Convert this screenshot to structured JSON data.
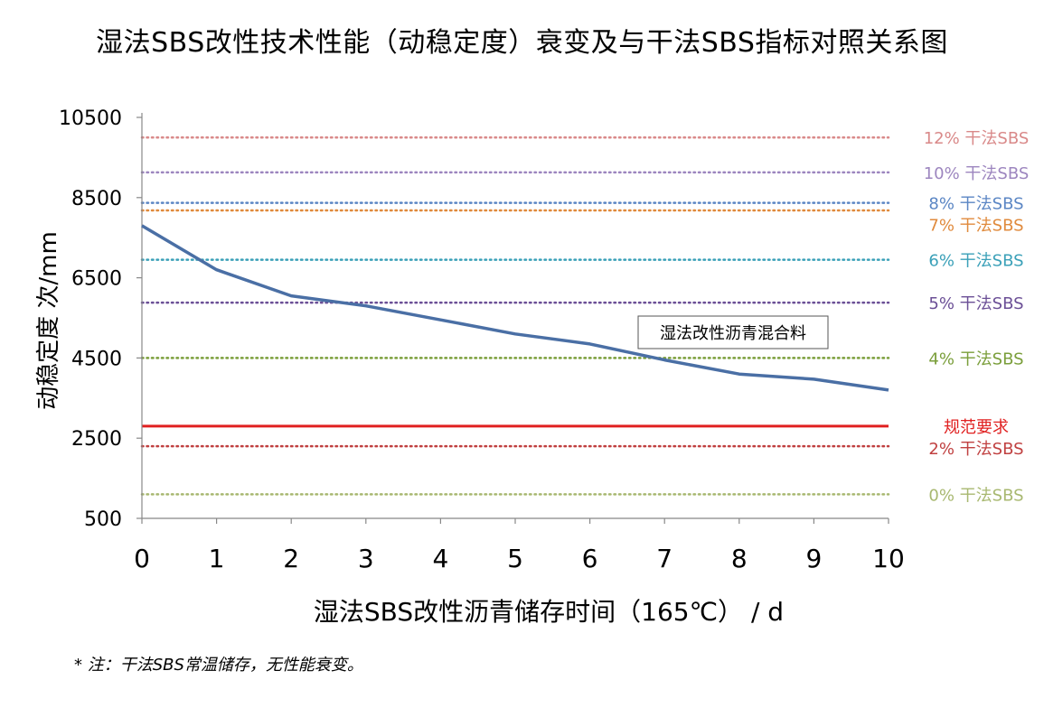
{
  "chart_data": {
    "type": "line",
    "title": "湿法SBS改性技术性能（动稳定度）衰变及与干法SBS指标对照关系图",
    "xlabel": "湿法SBS改性沥青储存时间（165℃）  / d",
    "ylabel": "动稳定度 次/mm",
    "xlim": [
      0,
      10
    ],
    "ylim": [
      500,
      10500
    ],
    "x_ticks": [
      0,
      1,
      2,
      3,
      4,
      5,
      6,
      7,
      8,
      9,
      10
    ],
    "y_ticks": [
      500,
      2500,
      4500,
      6500,
      8500,
      10500
    ],
    "grid": false,
    "series": [
      {
        "name": "湿法改性沥青混合料",
        "color": "#4a6fa5",
        "x": [
          0,
          1,
          2,
          3,
          4,
          5,
          6,
          7,
          8,
          9,
          10
        ],
        "y": [
          7800,
          6700,
          6050,
          5800,
          5450,
          5100,
          4850,
          4450,
          4100,
          3970,
          3700
        ]
      }
    ],
    "reference_lines": [
      {
        "label": "12% 干法SBS",
        "value": 10000,
        "color": "#d98989",
        "style": "dotted"
      },
      {
        "label": "10% 干法SBS",
        "value": 9130,
        "color": "#9d86bf",
        "style": "dotted"
      },
      {
        "label": "8% 干法SBS",
        "value": 8370,
        "color": "#5b86c4",
        "style": "dotted"
      },
      {
        "label": "7% 干法SBS",
        "value": 8180,
        "color": "#e08a3c",
        "style": "dotted"
      },
      {
        "label": "6% 干法SBS",
        "value": 6950,
        "color": "#3aa0b8",
        "style": "dotted"
      },
      {
        "label": "5% 干法SBS",
        "value": 5880,
        "color": "#6b4f96",
        "style": "dotted"
      },
      {
        "label": "4% 干法SBS",
        "value": 4500,
        "color": "#7a9e3a",
        "style": "dotted"
      },
      {
        "label": "规范要求",
        "value": 2800,
        "color": "#e02020",
        "style": "solid"
      },
      {
        "label": "2% 干法SBS",
        "value": 2300,
        "color": "#c04040",
        "style": "dotted"
      },
      {
        "label": "0% 干法SBS",
        "value": 1100,
        "color": "#a8b870",
        "style": "dotted"
      }
    ],
    "annotation": "湿法改性沥青混合料"
  },
  "footnote": "* 注：干法SBS常温储存，无性能衰变。"
}
